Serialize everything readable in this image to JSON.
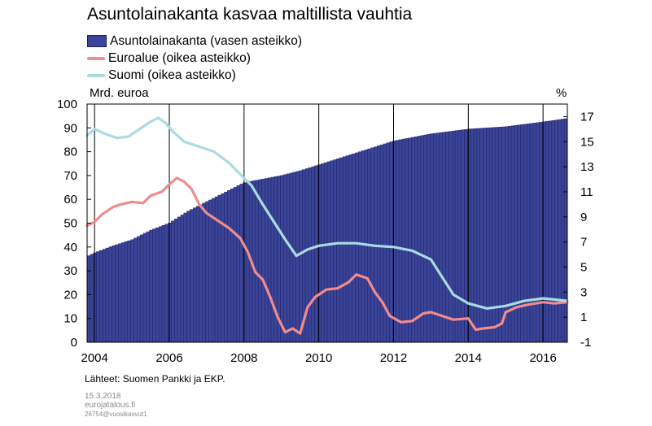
{
  "title": "Asuntolainakanta kasvaa maltillista vauhtia",
  "legend": [
    {
      "label": "Asuntolainakanta (vasen asteikko)",
      "color": "#3b4496",
      "kind": "bar"
    },
    {
      "label": "Euroalue (oikea asteikko)",
      "color": "#f08c8c",
      "kind": "line"
    },
    {
      "label": "Suomi (oikea asteikko)",
      "color": "#a8dce0",
      "kind": "line"
    }
  ],
  "unit_left": "Mrd. euroa",
  "unit_right": "%",
  "source": "Lähteet: Suomen Pankki ja EKP.",
  "footer": {
    "date": "15.3.2018",
    "site": "eurojatalous.fi",
    "code": "26754@vuosikasvut1"
  },
  "chart_data": {
    "type": "bar+line",
    "x_range": [
      2003.8,
      2016.65
    ],
    "x_ticks": [
      "2004",
      "2006",
      "2008",
      "2010",
      "2012",
      "2014",
      "2016"
    ],
    "y_left": {
      "range": [
        0,
        100
      ],
      "ticks": [
        "0",
        "10",
        "20",
        "30",
        "40",
        "50",
        "60",
        "70",
        "80",
        "90",
        "100"
      ]
    },
    "y_right": {
      "range": [
        -1,
        18
      ],
      "ticks": [
        "-1",
        "1",
        "3",
        "5",
        "7",
        "9",
        "11",
        "13",
        "15",
        "17"
      ]
    },
    "grid": "vertical",
    "series": [
      {
        "name": "Asuntolainakanta (vasen asteikko)",
        "axis": "left",
        "kind": "bar",
        "points": [
          [
            2003.8,
            36
          ],
          [
            2004.0,
            37.5
          ],
          [
            2004.5,
            40.5
          ],
          [
            2005.0,
            43
          ],
          [
            2005.5,
            47
          ],
          [
            2006.0,
            50
          ],
          [
            2006.5,
            55
          ],
          [
            2007.0,
            59
          ],
          [
            2007.5,
            63
          ],
          [
            2008.0,
            67
          ],
          [
            2008.5,
            68.5
          ],
          [
            2009.0,
            70
          ],
          [
            2009.5,
            72
          ],
          [
            2010.0,
            74.5
          ],
          [
            2010.5,
            77
          ],
          [
            2011.0,
            79.5
          ],
          [
            2011.5,
            82
          ],
          [
            2012.0,
            84.5
          ],
          [
            2012.5,
            86
          ],
          [
            2013.0,
            87.5
          ],
          [
            2013.5,
            88.5
          ],
          [
            2014.0,
            89.5
          ],
          [
            2014.5,
            90
          ],
          [
            2015.0,
            90.5
          ],
          [
            2015.5,
            91.5
          ],
          [
            2016.0,
            92.5
          ],
          [
            2016.65,
            94
          ]
        ]
      },
      {
        "name": "Euroalue (oikea asteikko)",
        "axis": "right",
        "kind": "line",
        "points": [
          [
            2003.8,
            8.3
          ],
          [
            2004.0,
            8.6
          ],
          [
            2004.2,
            9.2
          ],
          [
            2004.5,
            9.8
          ],
          [
            2004.7,
            10.0
          ],
          [
            2005.0,
            10.2
          ],
          [
            2005.3,
            10.1
          ],
          [
            2005.5,
            10.7
          ],
          [
            2005.8,
            11.0
          ],
          [
            2006.0,
            11.6
          ],
          [
            2006.2,
            12.1
          ],
          [
            2006.4,
            11.8
          ],
          [
            2006.6,
            11.2
          ],
          [
            2006.8,
            10.0
          ],
          [
            2007.0,
            9.3
          ],
          [
            2007.3,
            8.7
          ],
          [
            2007.6,
            8.1
          ],
          [
            2007.9,
            7.3
          ],
          [
            2008.1,
            6.2
          ],
          [
            2008.3,
            4.6
          ],
          [
            2008.5,
            4.0
          ],
          [
            2008.7,
            2.6
          ],
          [
            2008.9,
            1.0
          ],
          [
            2009.1,
            -0.2
          ],
          [
            2009.3,
            0.1
          ],
          [
            2009.5,
            -0.3
          ],
          [
            2009.7,
            1.8
          ],
          [
            2009.9,
            2.6
          ],
          [
            2010.2,
            3.2
          ],
          [
            2010.5,
            3.3
          ],
          [
            2010.8,
            3.8
          ],
          [
            2011.0,
            4.4
          ],
          [
            2011.3,
            4.1
          ],
          [
            2011.5,
            3.0
          ],
          [
            2011.7,
            2.2
          ],
          [
            2011.9,
            1.1
          ],
          [
            2012.2,
            0.6
          ],
          [
            2012.5,
            0.7
          ],
          [
            2012.8,
            1.3
          ],
          [
            2013.0,
            1.4
          ],
          [
            2013.3,
            1.1
          ],
          [
            2013.6,
            0.8
          ],
          [
            2014.0,
            0.9
          ],
          [
            2014.2,
            0.0
          ],
          [
            2014.4,
            0.1
          ],
          [
            2014.7,
            0.2
          ],
          [
            2014.9,
            0.5
          ],
          [
            2015.0,
            1.4
          ],
          [
            2015.3,
            1.8
          ],
          [
            2015.6,
            2.0
          ],
          [
            2016.0,
            2.2
          ],
          [
            2016.3,
            2.1
          ],
          [
            2016.65,
            2.2
          ]
        ]
      },
      {
        "name": "Suomi (oikea asteikko)",
        "axis": "right",
        "kind": "line",
        "points": [
          [
            2003.8,
            15.5
          ],
          [
            2004.0,
            16.0
          ],
          [
            2004.3,
            15.6
          ],
          [
            2004.6,
            15.3
          ],
          [
            2004.9,
            15.4
          ],
          [
            2005.1,
            15.8
          ],
          [
            2005.3,
            16.2
          ],
          [
            2005.5,
            16.6
          ],
          [
            2005.7,
            16.9
          ],
          [
            2005.9,
            16.5
          ],
          [
            2006.1,
            15.8
          ],
          [
            2006.4,
            15.0
          ],
          [
            2006.8,
            14.6
          ],
          [
            2007.2,
            14.2
          ],
          [
            2007.6,
            13.3
          ],
          [
            2007.9,
            12.4
          ],
          [
            2008.2,
            11.5
          ],
          [
            2008.5,
            10.0
          ],
          [
            2008.8,
            8.6
          ],
          [
            2009.1,
            7.2
          ],
          [
            2009.4,
            5.9
          ],
          [
            2009.7,
            6.4
          ],
          [
            2010.0,
            6.7
          ],
          [
            2010.5,
            6.9
          ],
          [
            2011.0,
            6.9
          ],
          [
            2011.5,
            6.7
          ],
          [
            2012.0,
            6.6
          ],
          [
            2012.5,
            6.3
          ],
          [
            2013.0,
            5.6
          ],
          [
            2013.3,
            4.2
          ],
          [
            2013.6,
            2.8
          ],
          [
            2014.0,
            2.1
          ],
          [
            2014.5,
            1.7
          ],
          [
            2015.0,
            1.9
          ],
          [
            2015.5,
            2.3
          ],
          [
            2016.0,
            2.5
          ],
          [
            2016.65,
            2.3
          ]
        ]
      }
    ]
  }
}
